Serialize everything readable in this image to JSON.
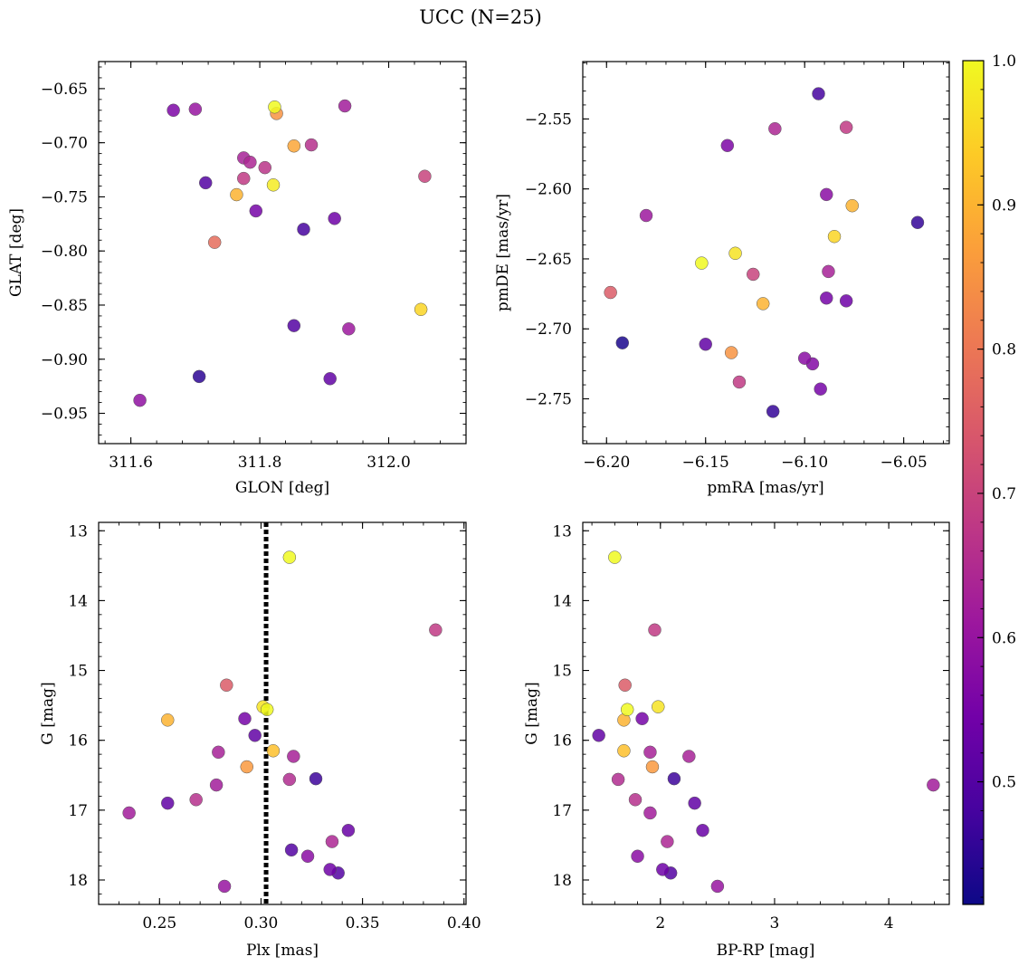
{
  "title": "UCC (N=25)",
  "colormap": {
    "name": "plasma",
    "range": [
      0.415,
      1.0
    ],
    "ticks": [
      0.5,
      0.6,
      0.7,
      0.8,
      0.9,
      1.0
    ],
    "tick_labels": [
      "0.5",
      "0.6",
      "0.7",
      "0.8",
      "0.9",
      "1.0"
    ],
    "stops": [
      "#0d0887",
      "#46039f",
      "#7201a8",
      "#9c179e",
      "#bd3786",
      "#d8576b",
      "#ed7953",
      "#fb9f3a",
      "#fdca26",
      "#f0f921"
    ]
  },
  "chart_data": [
    {
      "id": "glon-glat",
      "type": "scatter",
      "xlabel": "GLON [deg]",
      "ylabel": "GLAT [deg]",
      "xlim": [
        311.55,
        312.12
      ],
      "ylim": [
        -0.978,
        -0.625
      ],
      "invert_y": false,
      "xticks": [
        311.6,
        311.8,
        312.0
      ],
      "xtick_labels": [
        "311.6",
        "311.8",
        "312.0"
      ],
      "yticks": [
        -0.65,
        -0.7,
        -0.75,
        -0.8,
        -0.85,
        -0.9,
        -0.95
      ],
      "ytick_labels": [
        "−0.65",
        "−0.70",
        "−0.75",
        "−0.80",
        "−0.85",
        "−0.90",
        "−0.95"
      ],
      "points": [
        {
          "x": 311.823,
          "y": -0.667,
          "c": 1.0
        },
        {
          "x": 311.826,
          "y": -0.673,
          "c": 0.85
        },
        {
          "x": 311.666,
          "y": -0.67,
          "c": 0.56
        },
        {
          "x": 311.7,
          "y": -0.669,
          "c": 0.6
        },
        {
          "x": 311.932,
          "y": -0.666,
          "c": 0.62
        },
        {
          "x": 311.853,
          "y": -0.703,
          "c": 0.88
        },
        {
          "x": 311.88,
          "y": -0.702,
          "c": 0.66
        },
        {
          "x": 311.775,
          "y": -0.714,
          "c": 0.63
        },
        {
          "x": 311.785,
          "y": -0.718,
          "c": 0.64
        },
        {
          "x": 311.808,
          "y": -0.723,
          "c": 0.67
        },
        {
          "x": 311.775,
          "y": -0.733,
          "c": 0.68
        },
        {
          "x": 311.821,
          "y": -0.739,
          "c": 0.98
        },
        {
          "x": 311.716,
          "y": -0.737,
          "c": 0.5
        },
        {
          "x": 312.056,
          "y": -0.731,
          "c": 0.7
        },
        {
          "x": 311.764,
          "y": -0.748,
          "c": 0.9
        },
        {
          "x": 311.794,
          "y": -0.763,
          "c": 0.55
        },
        {
          "x": 311.916,
          "y": -0.77,
          "c": 0.54
        },
        {
          "x": 311.868,
          "y": -0.78,
          "c": 0.48
        },
        {
          "x": 311.73,
          "y": -0.792,
          "c": 0.78
        },
        {
          "x": 312.05,
          "y": -0.854,
          "c": 0.95
        },
        {
          "x": 311.853,
          "y": -0.869,
          "c": 0.5
        },
        {
          "x": 311.938,
          "y": -0.872,
          "c": 0.61
        },
        {
          "x": 311.706,
          "y": -0.916,
          "c": 0.45
        },
        {
          "x": 311.909,
          "y": -0.918,
          "c": 0.52
        },
        {
          "x": 311.614,
          "y": -0.938,
          "c": 0.59
        }
      ]
    },
    {
      "id": "pmra-pmde",
      "type": "scatter",
      "xlabel": "pmRA [mas/yr]",
      "ylabel": "pmDE [mas/yr]",
      "xlim": [
        -6.212,
        -6.027
      ],
      "ylim": [
        -2.782,
        -2.509
      ],
      "invert_y": false,
      "xticks": [
        -6.2,
        -6.15,
        -6.1,
        -6.05
      ],
      "xtick_labels": [
        "−6.20",
        "−6.15",
        "−6.10",
        "−6.05"
      ],
      "yticks": [
        -2.55,
        -2.6,
        -2.65,
        -2.7,
        -2.75
      ],
      "ytick_labels": [
        "−2.55",
        "−2.60",
        "−2.65",
        "−2.70",
        "−2.75"
      ],
      "points": [
        {
          "x": -6.093,
          "y": -2.532,
          "c": 0.48
        },
        {
          "x": -6.079,
          "y": -2.556,
          "c": 0.68
        },
        {
          "x": -6.115,
          "y": -2.557,
          "c": 0.64
        },
        {
          "x": -6.139,
          "y": -2.569,
          "c": 0.56
        },
        {
          "x": -6.089,
          "y": -2.604,
          "c": 0.58
        },
        {
          "x": -6.076,
          "y": -2.612,
          "c": 0.9
        },
        {
          "x": -6.18,
          "y": -2.619,
          "c": 0.61
        },
        {
          "x": -6.043,
          "y": -2.624,
          "c": 0.46
        },
        {
          "x": -6.085,
          "y": -2.634,
          "c": 0.95
        },
        {
          "x": -6.135,
          "y": -2.646,
          "c": 0.97
        },
        {
          "x": -6.152,
          "y": -2.653,
          "c": 1.0
        },
        {
          "x": -6.088,
          "y": -2.659,
          "c": 0.63
        },
        {
          "x": -6.126,
          "y": -2.661,
          "c": 0.7
        },
        {
          "x": -6.198,
          "y": -2.674,
          "c": 0.75
        },
        {
          "x": -6.089,
          "y": -2.678,
          "c": 0.55
        },
        {
          "x": -6.079,
          "y": -2.68,
          "c": 0.54
        },
        {
          "x": -6.121,
          "y": -2.682,
          "c": 0.9
        },
        {
          "x": -6.192,
          "y": -2.71,
          "c": 0.43
        },
        {
          "x": -6.15,
          "y": -2.711,
          "c": 0.52
        },
        {
          "x": -6.137,
          "y": -2.717,
          "c": 0.85
        },
        {
          "x": -6.1,
          "y": -2.721,
          "c": 0.58
        },
        {
          "x": -6.096,
          "y": -2.725,
          "c": 0.57
        },
        {
          "x": -6.133,
          "y": -2.738,
          "c": 0.68
        },
        {
          "x": -6.092,
          "y": -2.743,
          "c": 0.55
        },
        {
          "x": -6.116,
          "y": -2.759,
          "c": 0.46
        }
      ]
    },
    {
      "id": "plx-g",
      "type": "scatter",
      "xlabel": "Plx [mas]",
      "ylabel": "G [mag]",
      "xlim": [
        0.22,
        0.401
      ],
      "ylim": [
        12.88,
        18.35
      ],
      "invert_y": true,
      "xticks": [
        0.25,
        0.3,
        0.35,
        0.4
      ],
      "xtick_labels": [
        "0.25",
        "0.30",
        "0.35",
        "0.40"
      ],
      "yticks": [
        13,
        14,
        15,
        16,
        17,
        18
      ],
      "ytick_labels": [
        "13",
        "14",
        "15",
        "16",
        "17",
        "18"
      ],
      "vline": {
        "x": 0.3025
      },
      "points": [
        {
          "x": 0.314,
          "y": 13.38,
          "c": 1.0
        },
        {
          "x": 0.386,
          "y": 14.42,
          "c": 0.68
        },
        {
          "x": 0.283,
          "y": 15.21,
          "c": 0.75
        },
        {
          "x": 0.301,
          "y": 15.52,
          "c": 0.97
        },
        {
          "x": 0.303,
          "y": 15.56,
          "c": 1.0
        },
        {
          "x": 0.254,
          "y": 15.71,
          "c": 0.9
        },
        {
          "x": 0.292,
          "y": 15.69,
          "c": 0.55
        },
        {
          "x": 0.297,
          "y": 15.93,
          "c": 0.52
        },
        {
          "x": 0.306,
          "y": 16.15,
          "c": 0.92
        },
        {
          "x": 0.279,
          "y": 16.17,
          "c": 0.63
        },
        {
          "x": 0.316,
          "y": 16.23,
          "c": 0.63
        },
        {
          "x": 0.293,
          "y": 16.38,
          "c": 0.86
        },
        {
          "x": 0.327,
          "y": 16.55,
          "c": 0.47
        },
        {
          "x": 0.314,
          "y": 16.56,
          "c": 0.65
        },
        {
          "x": 0.278,
          "y": 16.64,
          "c": 0.62
        },
        {
          "x": 0.268,
          "y": 16.85,
          "c": 0.66
        },
        {
          "x": 0.254,
          "y": 16.9,
          "c": 0.52
        },
        {
          "x": 0.235,
          "y": 17.04,
          "c": 0.62
        },
        {
          "x": 0.343,
          "y": 17.29,
          "c": 0.53
        },
        {
          "x": 0.335,
          "y": 17.45,
          "c": 0.64
        },
        {
          "x": 0.315,
          "y": 17.57,
          "c": 0.5
        },
        {
          "x": 0.323,
          "y": 17.66,
          "c": 0.58
        },
        {
          "x": 0.334,
          "y": 17.85,
          "c": 0.54
        },
        {
          "x": 0.338,
          "y": 17.9,
          "c": 0.5
        },
        {
          "x": 0.282,
          "y": 18.09,
          "c": 0.6
        }
      ]
    },
    {
      "id": "bprp-g",
      "type": "scatter",
      "xlabel": "BP-RP [mag]",
      "ylabel": "G [mag]",
      "xlim": [
        1.32,
        4.53
      ],
      "ylim": [
        12.88,
        18.35
      ],
      "invert_y": true,
      "xticks": [
        2,
        3,
        4
      ],
      "xtick_labels": [
        "2",
        "3",
        "4"
      ],
      "yticks": [
        13,
        14,
        15,
        16,
        17,
        18
      ],
      "ytick_labels": [
        "13",
        "14",
        "15",
        "16",
        "17",
        "18"
      ],
      "points": [
        {
          "x": 1.6,
          "y": 13.38,
          "c": 1.0
        },
        {
          "x": 1.95,
          "y": 14.42,
          "c": 0.68
        },
        {
          "x": 1.69,
          "y": 15.21,
          "c": 0.75
        },
        {
          "x": 1.98,
          "y": 15.52,
          "c": 0.97
        },
        {
          "x": 1.71,
          "y": 15.56,
          "c": 1.0
        },
        {
          "x": 1.68,
          "y": 15.71,
          "c": 0.9
        },
        {
          "x": 1.84,
          "y": 15.69,
          "c": 0.55
        },
        {
          "x": 1.46,
          "y": 15.93,
          "c": 0.52
        },
        {
          "x": 1.68,
          "y": 16.15,
          "c": 0.92
        },
        {
          "x": 1.91,
          "y": 16.17,
          "c": 0.63
        },
        {
          "x": 2.25,
          "y": 16.23,
          "c": 0.63
        },
        {
          "x": 1.93,
          "y": 16.38,
          "c": 0.86
        },
        {
          "x": 2.12,
          "y": 16.55,
          "c": 0.47
        },
        {
          "x": 1.63,
          "y": 16.56,
          "c": 0.65
        },
        {
          "x": 4.39,
          "y": 16.64,
          "c": 0.62
        },
        {
          "x": 1.78,
          "y": 16.85,
          "c": 0.66
        },
        {
          "x": 2.3,
          "y": 16.9,
          "c": 0.52
        },
        {
          "x": 1.91,
          "y": 17.04,
          "c": 0.62
        },
        {
          "x": 2.37,
          "y": 17.29,
          "c": 0.53
        },
        {
          "x": 2.06,
          "y": 17.45,
          "c": 0.64
        },
        {
          "x": 1.8,
          "y": 17.66,
          "c": 0.58
        },
        {
          "x": 2.02,
          "y": 17.85,
          "c": 0.54
        },
        {
          "x": 2.09,
          "y": 17.9,
          "c": 0.5
        },
        {
          "x": 2.5,
          "y": 18.09,
          "c": 0.6
        }
      ]
    }
  ]
}
